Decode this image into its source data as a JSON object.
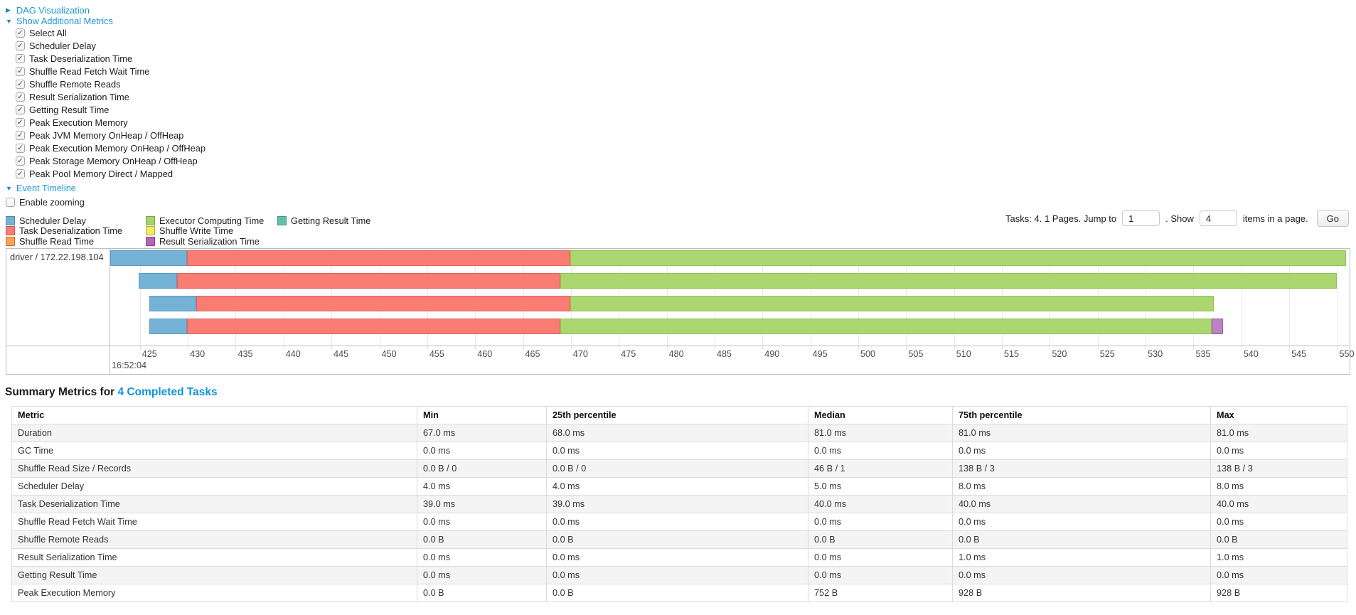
{
  "controls": {
    "dag_link": "DAG Visualization",
    "metrics_link": "Show Additional Metrics",
    "timeline_link": "Event Timeline",
    "enable_zooming_label": "Enable zooming",
    "metric_options": [
      {
        "label": "Select All",
        "checked": true
      },
      {
        "label": "Scheduler Delay",
        "checked": true
      },
      {
        "label": "Task Deserialization Time",
        "checked": true
      },
      {
        "label": "Shuffle Read Fetch Wait Time",
        "checked": true
      },
      {
        "label": "Shuffle Remote Reads",
        "checked": true
      },
      {
        "label": "Result Serialization Time",
        "checked": true
      },
      {
        "label": "Getting Result Time",
        "checked": true
      },
      {
        "label": "Peak Execution Memory",
        "checked": true
      },
      {
        "label": "Peak JVM Memory OnHeap / OffHeap",
        "checked": true
      },
      {
        "label": "Peak Execution Memory OnHeap / OffHeap",
        "checked": true
      },
      {
        "label": "Peak Storage Memory OnHeap / OffHeap",
        "checked": true
      },
      {
        "label": "Peak Pool Memory Direct / Mapped",
        "checked": true
      }
    ]
  },
  "legend": {
    "items": [
      {
        "label": "Scheduler Delay",
        "color": "#74B2D6"
      },
      {
        "label": "Task Deserialization Time",
        "color": "#F97D72"
      },
      {
        "label": "Shuffle Read Time",
        "color": "#FBA153"
      },
      {
        "label": "Executor Computing Time",
        "color": "#A8D569"
      },
      {
        "label": "Shuffle Write Time",
        "color": "#F5EB5D"
      },
      {
        "label": "Result Serialization Time",
        "color": "#B562B9"
      },
      {
        "label": "Getting Result Time",
        "color": "#5FC2A6"
      }
    ]
  },
  "pager": {
    "prefix": "Tasks: 4. 1 Pages. Jump to",
    "jump_value": "1",
    "mid": ". Show",
    "show_value": "4",
    "suffix": "items in a page.",
    "go_label": "Go"
  },
  "timeline": {
    "group_label": "driver / 172.22.198.104",
    "axis": {
      "domain_min": 421.9,
      "domain_max": 551.3,
      "tick_start": 425,
      "tick_end": 550,
      "tick_step": 5,
      "major_label": "16:52:04"
    },
    "colors": {
      "scheduler_delay": {
        "fill": "#74B2D6",
        "border": "#5A9BC4"
      },
      "task_deserialization": {
        "fill": "#F97D72",
        "border": "#E4615A"
      },
      "executor_computing": {
        "fill": "#ACD66F",
        "border": "#92C254"
      },
      "result_serialization": {
        "fill": "#BC82C2",
        "border": "#A25FAA"
      }
    },
    "tasks": [
      {
        "segments": [
          {
            "type": "scheduler_delay",
            "start": 421.9,
            "end": 429.9
          },
          {
            "type": "task_deserialization",
            "start": 429.9,
            "end": 469.9
          },
          {
            "type": "executor_computing",
            "start": 469.9,
            "end": 550.9
          }
        ]
      },
      {
        "segments": [
          {
            "type": "scheduler_delay",
            "start": 424.9,
            "end": 428.9
          },
          {
            "type": "task_deserialization",
            "start": 428.9,
            "end": 468.9
          },
          {
            "type": "executor_computing",
            "start": 468.9,
            "end": 550.0
          }
        ]
      },
      {
        "segments": [
          {
            "type": "scheduler_delay",
            "start": 426.0,
            "end": 430.9
          },
          {
            "type": "task_deserialization",
            "start": 430.9,
            "end": 469.9
          },
          {
            "type": "executor_computing",
            "start": 469.9,
            "end": 537.1
          }
        ]
      },
      {
        "segments": [
          {
            "type": "scheduler_delay",
            "start": 426.0,
            "end": 429.9
          },
          {
            "type": "task_deserialization",
            "start": 429.9,
            "end": 468.9
          },
          {
            "type": "executor_computing",
            "start": 468.9,
            "end": 536.9
          },
          {
            "type": "result_serialization",
            "start": 536.9,
            "end": 538.1
          }
        ]
      }
    ]
  },
  "summary": {
    "title_prefix": "Summary Metrics for",
    "title_link": "4 Completed Tasks",
    "columns": [
      "Metric",
      "Min",
      "25th percentile",
      "Median",
      "75th percentile",
      "Max"
    ],
    "rows": [
      [
        "Duration",
        "67.0 ms",
        "68.0 ms",
        "81.0 ms",
        "81.0 ms",
        "81.0 ms"
      ],
      [
        "GC Time",
        "0.0 ms",
        "0.0 ms",
        "0.0 ms",
        "0.0 ms",
        "0.0 ms"
      ],
      [
        "Shuffle Read Size / Records",
        "0.0 B / 0",
        "0.0 B / 0",
        "46 B / 1",
        "138 B / 3",
        "138 B / 3"
      ],
      [
        "Scheduler Delay",
        "4.0 ms",
        "4.0 ms",
        "5.0 ms",
        "8.0 ms",
        "8.0 ms"
      ],
      [
        "Task Deserialization Time",
        "39.0 ms",
        "39.0 ms",
        "40.0 ms",
        "40.0 ms",
        "40.0 ms"
      ],
      [
        "Shuffle Read Fetch Wait Time",
        "0.0 ms",
        "0.0 ms",
        "0.0 ms",
        "0.0 ms",
        "0.0 ms"
      ],
      [
        "Shuffle Remote Reads",
        "0.0 B",
        "0.0 B",
        "0.0 B",
        "0.0 B",
        "0.0 B"
      ],
      [
        "Result Serialization Time",
        "0.0 ms",
        "0.0 ms",
        "0.0 ms",
        "1.0 ms",
        "1.0 ms"
      ],
      [
        "Getting Result Time",
        "0.0 ms",
        "0.0 ms",
        "0.0 ms",
        "0.0 ms",
        "0.0 ms"
      ],
      [
        "Peak Execution Memory",
        "0.0 B",
        "0.0 B",
        "752 B",
        "928 B",
        "928 B"
      ]
    ]
  }
}
